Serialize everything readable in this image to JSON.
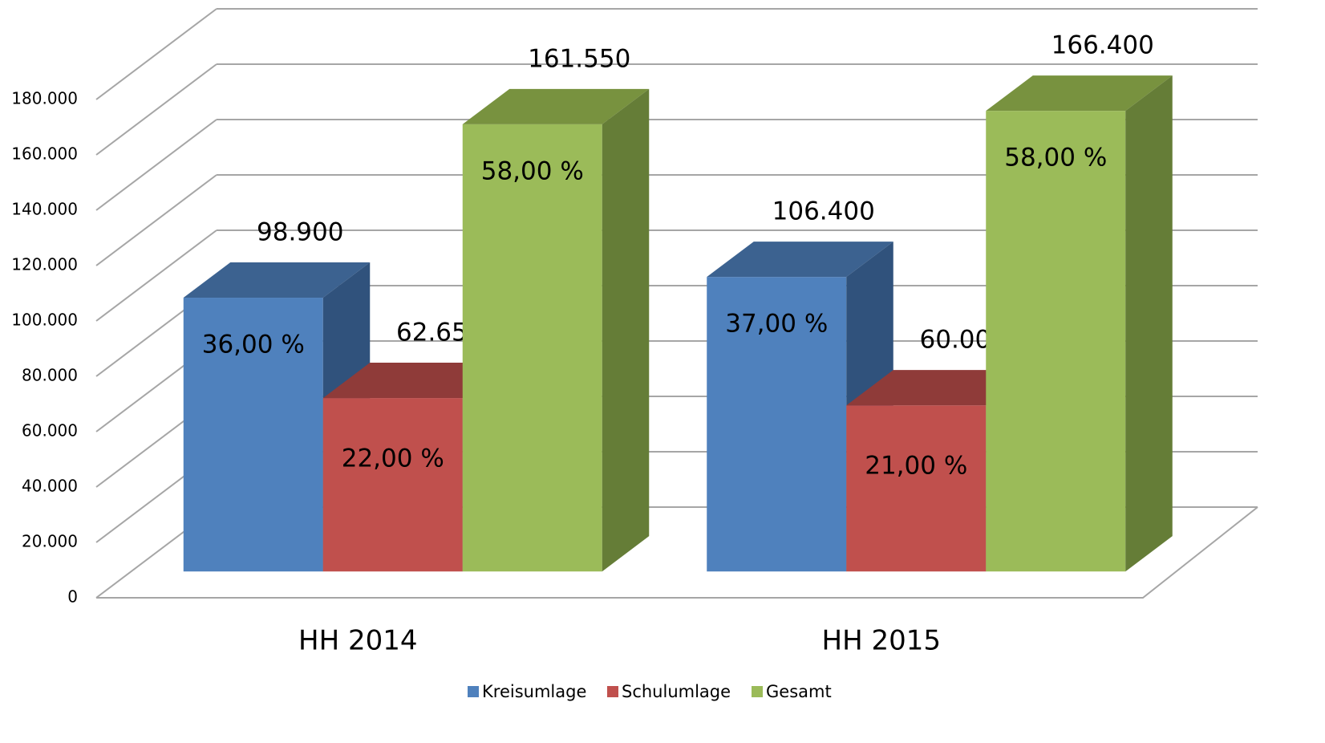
{
  "chart_data": {
    "type": "bar3d",
    "categories": [
      "HH 2014",
      "HH 2015"
    ],
    "series": [
      {
        "name": "Kreisumlage",
        "color": "#4f81bd",
        "top_color": "#3c6290",
        "side_color": "#30527c",
        "values": [
          98900,
          106400
        ],
        "value_labels": [
          "98.900",
          "106.400"
        ],
        "share_labels": [
          "36,00 %",
          "37,00 %"
        ]
      },
      {
        "name": "Schulumlage",
        "color": "#c0504d",
        "top_color": "#8f3b39",
        "side_color": "#8f3b39",
        "values": [
          62650,
          60000
        ],
        "value_labels": [
          "62.650",
          "60.000"
        ],
        "share_labels": [
          "22,00 %",
          "21,00 %"
        ]
      },
      {
        "name": "Gesamt",
        "color": "#9bbb59",
        "top_color": "#78923f",
        "side_color": "#657d37",
        "values": [
          161550,
          166400
        ],
        "value_labels": [
          "161.550",
          "166.400"
        ],
        "share_labels": [
          "58,00 %",
          "58,00 %"
        ]
      }
    ],
    "ylim": [
      0,
      180000
    ],
    "yticks": [
      0,
      {
        "value": 20000,
        "label": "20.000"
      },
      {
        "value": 40000,
        "label": "40.000"
      },
      {
        "value": 60000,
        "label": "60.000"
      },
      {
        "value": 80000,
        "label": "80.000"
      },
      {
        "value": 100000,
        "label": "100.000"
      },
      {
        "value": 120000,
        "label": "120.000"
      },
      {
        "value": 140000,
        "label": "140.000"
      },
      {
        "value": 160000,
        "label": "160.000"
      },
      {
        "value": 180000,
        "label": "180.000"
      }
    ],
    "grid": true,
    "legend": "bottom"
  }
}
